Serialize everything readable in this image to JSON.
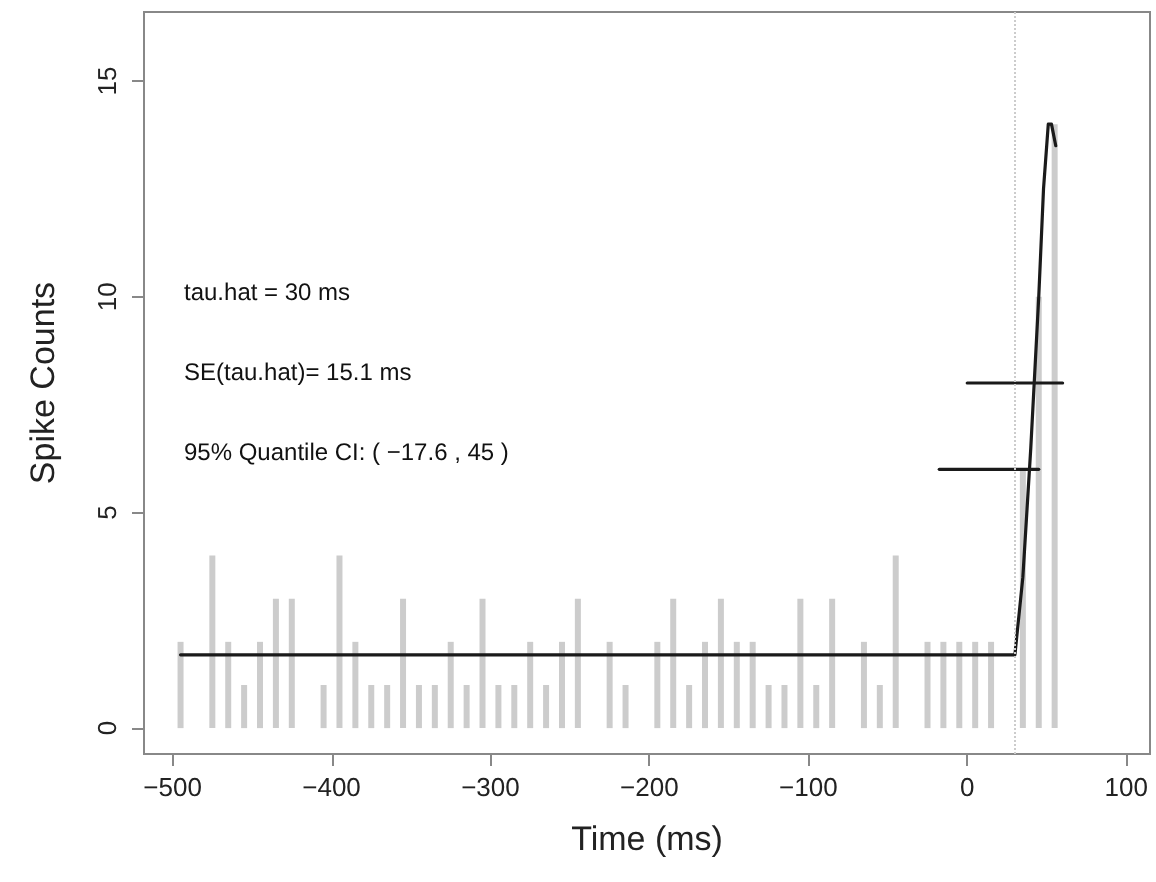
{
  "chart_data": {
    "type": "bar",
    "xlabel": "Time (ms)",
    "ylabel": "Spike Counts",
    "xlim": [
      -518,
      115
    ],
    "xticks": [
      -500,
      -400,
      -300,
      -200,
      -100,
      0,
      100
    ],
    "ylim": [
      -0.6,
      16.6
    ],
    "yticks": [
      0,
      5,
      10,
      15
    ],
    "grid": false,
    "annotations": [
      "tau.hat = 30 ms",
      "SE(tau.hat)= 15.1 ms",
      "95% Quantile CI: ( −17.6 , 45 )"
    ],
    "ref_lines": [
      {
        "axis": "x",
        "value": 30,
        "color": "#cccccc",
        "line_style": "dotted"
      }
    ],
    "series": [
      {
        "color": "#cccccc",
        "x": [
          -495,
          -485,
          -475,
          -465,
          -455,
          -445,
          -435,
          -425,
          -415,
          -405,
          -395,
          -385,
          -375,
          -365,
          -355,
          -345,
          -335,
          -325,
          -315,
          -305,
          -295,
          -285,
          -275,
          -265,
          -255,
          -245,
          -235,
          -225,
          -215,
          -205,
          -195,
          -185,
          -175,
          -165,
          -155,
          -145,
          -135,
          -125,
          -115,
          -105,
          -95,
          -85,
          -75,
          -65,
          -55,
          -45,
          -35,
          -25,
          -15,
          -5,
          5,
          15,
          25,
          35,
          45,
          55
        ],
        "values": [
          2,
          0,
          4,
          2,
          1,
          2,
          3,
          3,
          0,
          1,
          4,
          2,
          1,
          1,
          3,
          1,
          1,
          2,
          1,
          3,
          1,
          1,
          2,
          1,
          2,
          3,
          0,
          2,
          1,
          0,
          2,
          3,
          1,
          2,
          3,
          2,
          2,
          1,
          1,
          3,
          1,
          3,
          0,
          2,
          1,
          4,
          0,
          2,
          2,
          2,
          2,
          2,
          0,
          6,
          10,
          14
        ]
      },
      {
        "type": "line",
        "color": "#1a1a1a",
        "marker": "none",
        "x": [
          -495,
          30,
          35,
          40,
          45,
          48,
          51,
          53,
          55.7
        ],
        "values": [
          1.7,
          1.7,
          3.5,
          6.5,
          10,
          12.5,
          14,
          14,
          13.5
        ]
      },
      {
        "type": "line",
        "color": "#1a1a1a",
        "marker": "none",
        "x": [
          0,
          60
        ],
        "values": [
          8,
          8
        ]
      },
      {
        "type": "line",
        "color": "#1a1a1a",
        "marker": "none",
        "x": [
          -17.6,
          45
        ],
        "values": [
          6,
          6
        ]
      }
    ]
  }
}
